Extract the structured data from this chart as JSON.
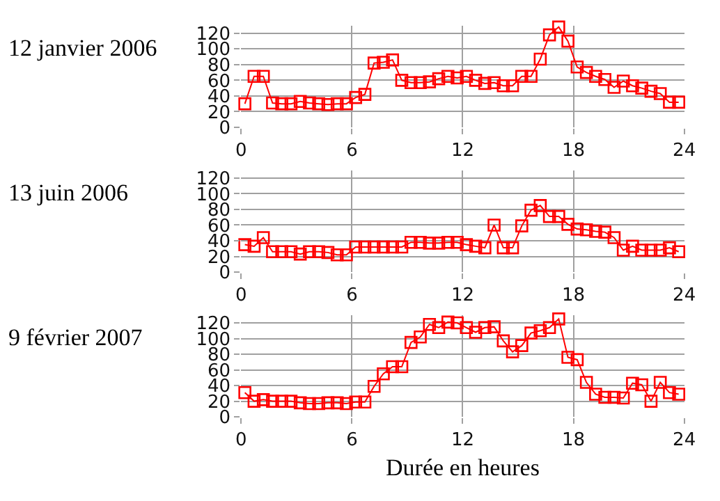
{
  "chart_data": [
    {
      "type": "line",
      "title": "12 janvier 2006",
      "x": [
        0.2,
        0.7,
        1.2,
        1.7,
        2.2,
        2.7,
        3.2,
        3.7,
        4.2,
        4.7,
        5.2,
        5.7,
        6.2,
        6.7,
        7.2,
        7.7,
        8.2,
        8.7,
        9.2,
        9.7,
        10.2,
        10.7,
        11.2,
        11.7,
        12.2,
        12.7,
        13.2,
        13.7,
        14.2,
        14.7,
        15.2,
        15.7,
        16.2,
        16.7,
        17.2,
        17.7,
        18.2,
        18.7,
        19.2,
        19.7,
        20.2,
        20.7,
        21.2,
        21.7,
        22.2,
        22.7,
        23.2,
        23.7
      ],
      "series": [
        {
          "color": "#ff0000",
          "values": [
            30,
            65,
            65,
            31,
            30,
            30,
            33,
            31,
            30,
            29,
            30,
            30,
            38,
            42,
            82,
            83,
            86,
            60,
            57,
            57,
            58,
            62,
            65,
            63,
            65,
            60,
            56,
            57,
            53,
            53,
            65,
            65,
            87,
            118,
            128,
            110,
            77,
            70,
            65,
            61,
            51,
            59,
            53,
            50,
            46,
            43,
            32,
            32
          ]
        }
      ],
      "xlim": [
        0,
        24
      ],
      "xticks": [
        0,
        6,
        12,
        18,
        24
      ],
      "ylim": [
        0,
        130
      ],
      "yticks": [
        0,
        20,
        40,
        60,
        80,
        100,
        120
      ],
      "grid": true,
      "marker": "square",
      "line_style": "solid"
    },
    {
      "type": "line",
      "title": "13 juin 2006",
      "x": [
        0.2,
        0.7,
        1.2,
        1.7,
        2.2,
        2.7,
        3.2,
        3.7,
        4.2,
        4.7,
        5.2,
        5.7,
        6.2,
        6.7,
        7.2,
        7.7,
        8.2,
        8.7,
        9.2,
        9.7,
        10.2,
        10.7,
        11.2,
        11.7,
        12.2,
        12.7,
        13.2,
        13.7,
        14.2,
        14.7,
        15.2,
        15.7,
        16.2,
        16.7,
        17.2,
        17.7,
        18.2,
        18.7,
        19.2,
        19.7,
        20.2,
        20.7,
        21.2,
        21.7,
        22.2,
        22.7,
        23.2,
        23.7
      ],
      "series": [
        {
          "color": "#ff0000",
          "values": [
            35,
            33,
            44,
            26,
            26,
            26,
            23,
            26,
            26,
            25,
            22,
            22,
            32,
            32,
            32,
            32,
            32,
            32,
            38,
            38,
            37,
            37,
            38,
            38,
            35,
            33,
            31,
            60,
            31,
            31,
            59,
            79,
            85,
            71,
            71,
            61,
            55,
            54,
            52,
            51,
            44,
            28,
            33,
            28,
            28,
            28,
            31,
            26
          ]
        }
      ],
      "xlim": [
        0,
        24
      ],
      "xticks": [
        0,
        6,
        12,
        18,
        24
      ],
      "ylim": [
        0,
        130
      ],
      "yticks": [
        0,
        20,
        40,
        60,
        80,
        100,
        120
      ],
      "grid": true,
      "marker": "square",
      "line_style": "solid"
    },
    {
      "type": "line",
      "title": "9 février 2007",
      "xlabel": "Durée en heures",
      "x": [
        0.2,
        0.7,
        1.2,
        1.7,
        2.2,
        2.7,
        3.2,
        3.7,
        4.2,
        4.7,
        5.2,
        5.7,
        6.2,
        6.7,
        7.2,
        7.7,
        8.2,
        8.7,
        9.2,
        9.7,
        10.2,
        10.7,
        11.2,
        11.7,
        12.2,
        12.7,
        13.2,
        13.7,
        14.2,
        14.7,
        15.2,
        15.7,
        16.2,
        16.7,
        17.2,
        17.7,
        18.2,
        18.7,
        19.2,
        19.7,
        20.2,
        20.7,
        21.2,
        21.7,
        22.2,
        22.7,
        23.2,
        23.7
      ],
      "series": [
        {
          "color": "#ff0000",
          "values": [
            31,
            20,
            22,
            20,
            20,
            20,
            18,
            17,
            17,
            18,
            18,
            17,
            19,
            19,
            39,
            55,
            64,
            64,
            95,
            102,
            118,
            114,
            121,
            120,
            114,
            108,
            114,
            115,
            97,
            83,
            91,
            107,
            110,
            114,
            125,
            76,
            73,
            44,
            29,
            25,
            25,
            24,
            43,
            41,
            20,
            44,
            31,
            29
          ]
        }
      ],
      "xlim": [
        0,
        24
      ],
      "xticks": [
        0,
        6,
        12,
        18,
        24
      ],
      "ylim": [
        0,
        130
      ],
      "yticks": [
        0,
        20,
        40,
        60,
        80,
        100,
        120
      ],
      "grid": true,
      "marker": "square",
      "line_style": "solid"
    }
  ]
}
